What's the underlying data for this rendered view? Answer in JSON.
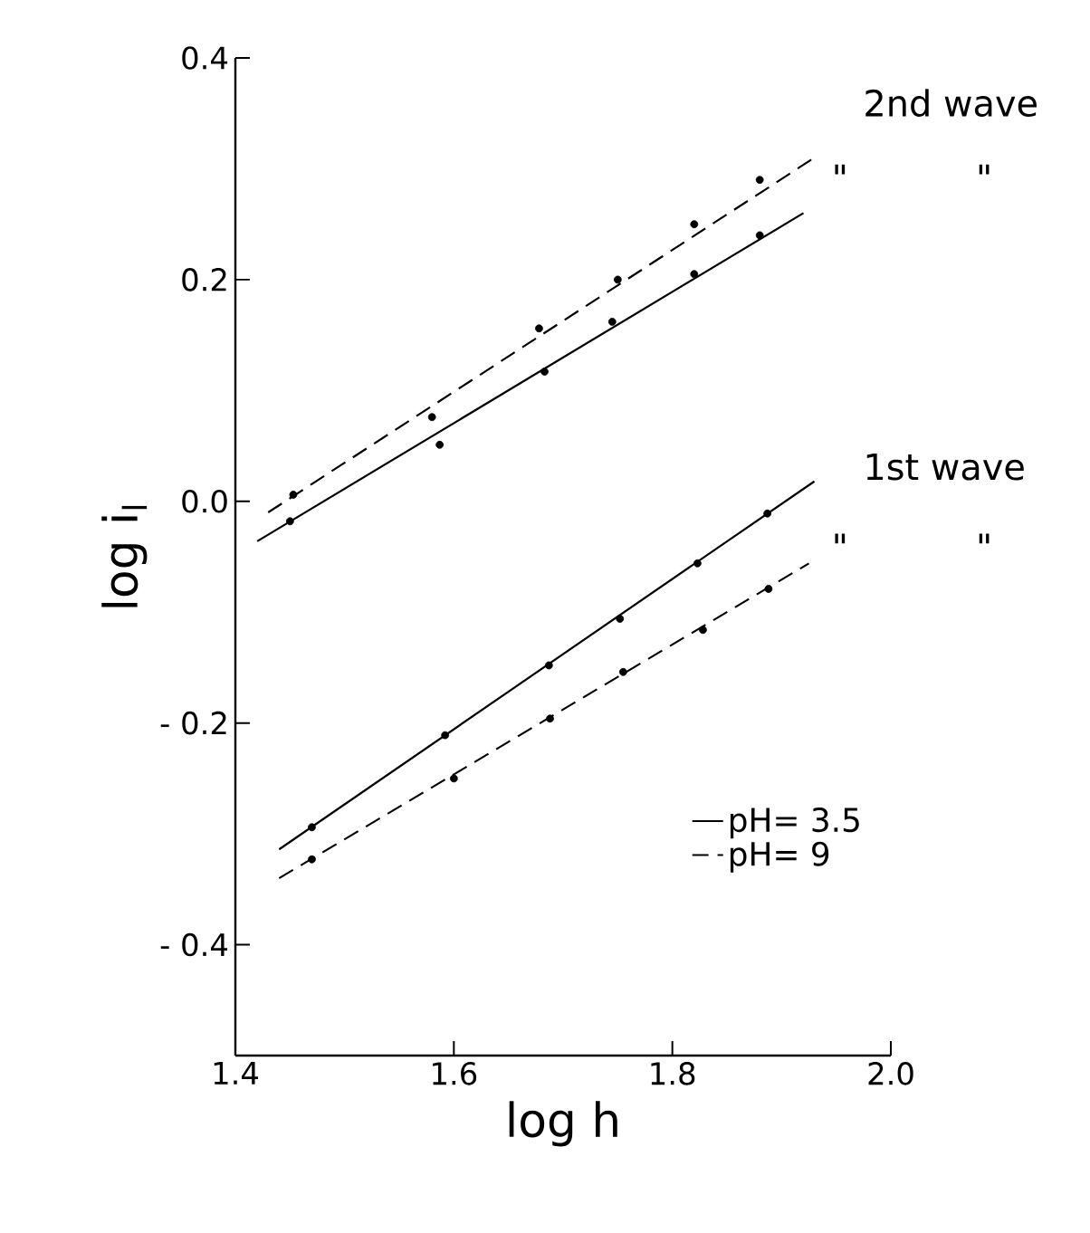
{
  "chart_data": {
    "type": "line",
    "xlabel": "log h",
    "ylabel": "log i$_{l}$",
    "xlim": [
      1.4,
      2.0
    ],
    "ylim": [
      -0.5,
      0.4
    ],
    "xticks": [
      1.4,
      1.6,
      1.8,
      {
        "value": 2.0,
        "label": "2.0"
      }
    ],
    "yticks": [
      {
        "value": -0.4,
        "label": "- 0.4"
      },
      {
        "value": -0.2,
        "label": "- 0.2"
      },
      {
        "value": 0.0,
        "label": "0.0"
      },
      0.2,
      0.4
    ],
    "legend": "bottom right",
    "grid": false,
    "series": [
      {
        "name": "pH= 3.5",
        "color": "#000000",
        "line_style": "solid",
        "marker": "none",
        "x": [
          1.42,
          1.92
        ],
        "values": [
          -0.036,
          0.26
        ]
      },
      {
        "name": "pH= 9",
        "color": "#000000",
        "line_style": "dashed",
        "marker": "none",
        "x": [
          1.43,
          1.93
        ],
        "values": [
          -0.01,
          0.31
        ]
      },
      {
        "color": "#000000",
        "line_style": "solid",
        "marker": "none",
        "x": [
          1.44,
          1.93
        ],
        "values": [
          -0.314,
          0.018
        ]
      },
      {
        "color": "#000000",
        "line_style": "dashed",
        "marker": "none",
        "x": [
          1.44,
          1.925
        ],
        "values": [
          -0.34,
          -0.056
        ]
      },
      {
        "type": "scatter",
        "color": "#000000",
        "marker": "circle",
        "x": [
          1.45,
          1.587,
          1.683,
          1.745,
          1.82,
          1.88
        ],
        "values": [
          -0.018,
          0.051,
          0.117,
          0.162,
          0.205,
          0.24
        ]
      },
      {
        "type": "scatter",
        "color": "#000000",
        "marker": "circle",
        "x": [
          1.453,
          1.58,
          1.678,
          1.75,
          1.82,
          1.88
        ],
        "values": [
          0.006,
          0.076,
          0.156,
          0.2,
          0.25,
          0.29
        ]
      },
      {
        "type": "scatter",
        "color": "#000000",
        "marker": "circle",
        "x": [
          1.47,
          1.592,
          1.687,
          1.752,
          1.823,
          1.887
        ],
        "values": [
          -0.294,
          -0.211,
          -0.148,
          -0.106,
          -0.056,
          -0.011
        ]
      },
      {
        "type": "scatter",
        "color": "#000000",
        "marker": "circle",
        "x": [
          1.47,
          1.6,
          1.688,
          1.755,
          1.828,
          1.888
        ],
        "values": [
          -0.323,
          -0.25,
          -0.196,
          -0.154,
          -0.116,
          -0.079
        ]
      }
    ],
    "annotations": [
      "2nd wave",
      "\"",
      "\"",
      "1st wave",
      "\"",
      "\""
    ]
  }
}
